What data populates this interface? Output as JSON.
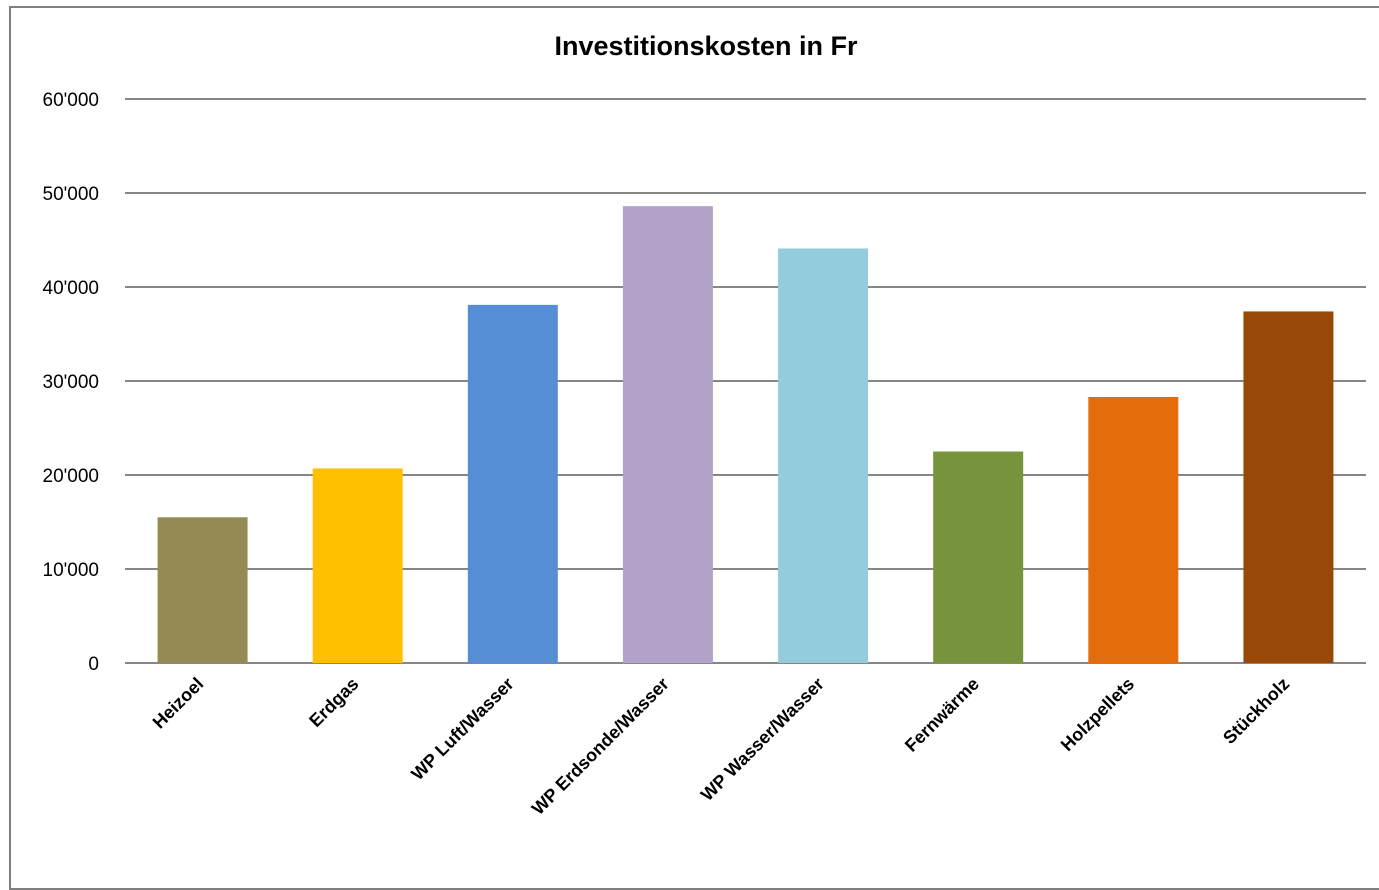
{
  "chart_data": {
    "type": "bar",
    "title": "Investitionskosten in Fr",
    "xlabel": "",
    "ylabel": "",
    "ylim": [
      0,
      60000
    ],
    "yticks": [
      0,
      10000,
      20000,
      30000,
      40000,
      50000,
      60000
    ],
    "ytick_labels": [
      "0",
      "10'000",
      "20'000",
      "30'000",
      "40'000",
      "50'000",
      "60'000"
    ],
    "grid": true,
    "legend": "none",
    "categories": [
      "Heizoel",
      "Erdgas",
      "WP Luft/Wasser",
      "WP Erdsonde/Wasser",
      "WP Wasser/Wasser",
      "Fernwärme",
      "Holzpellets",
      "Stückholz"
    ],
    "values": [
      15500,
      20700,
      38100,
      48600,
      44100,
      22500,
      28300,
      37400
    ],
    "colors": [
      "#948a54",
      "#ffc000",
      "#558ed5",
      "#b3a2c7",
      "#93cddd",
      "#77933c",
      "#e46c0a",
      "#984807"
    ]
  }
}
